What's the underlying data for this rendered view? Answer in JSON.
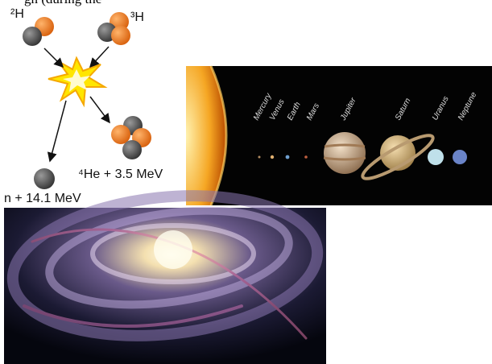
{
  "top_text": "gh (during the",
  "fusion": {
    "deuterium": "²H",
    "tritium": "³H",
    "helium": "⁴He + 3.5 MeV",
    "neutron": "n + 14.1 MeV"
  },
  "solar_system": {
    "planets": [
      "Mercury",
      "Venus",
      "Earth",
      "Mars",
      "Jupiter",
      "Saturn",
      "Uranus",
      "Neptune"
    ]
  }
}
